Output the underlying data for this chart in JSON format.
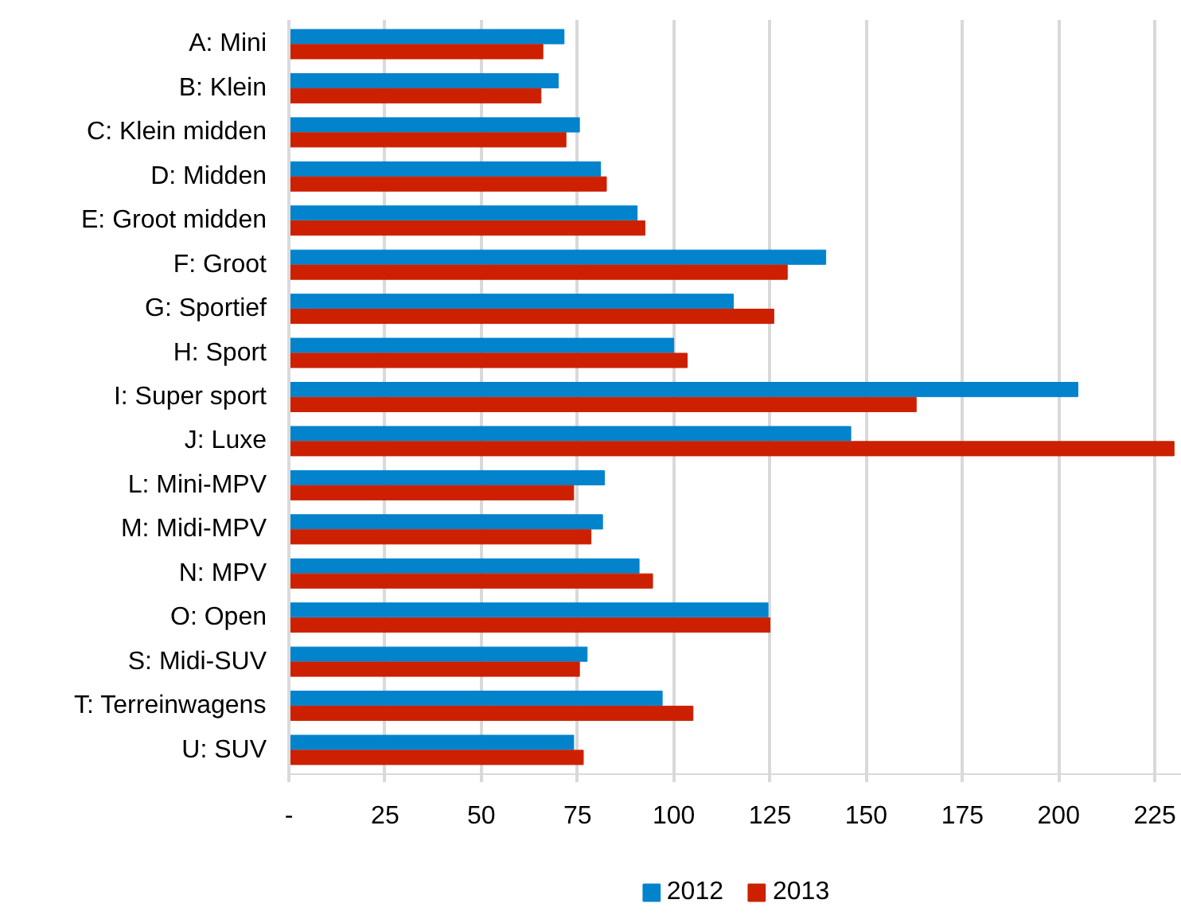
{
  "chart_data": {
    "type": "bar",
    "orientation": "horizontal",
    "categories": [
      "A: Mini",
      "B: Klein",
      "C: Klein midden",
      "D: Midden",
      "E: Groot midden",
      "F: Groot",
      "G: Sportief",
      "H: Sport",
      "I: Super sport",
      "J: Luxe",
      "L: Mini-MPV",
      "M: Midi-MPV",
      "N: MPV",
      "O: Open",
      "S: Midi-SUV",
      "T: Terreinwagens",
      "U: SUV"
    ],
    "series": [
      {
        "name": "2012",
        "color": "#0283cc",
        "values": [
          71.5,
          70,
          75.5,
          81,
          90.5,
          139.5,
          115.5,
          100,
          205,
          146,
          82,
          81.5,
          91,
          124.5,
          77.5,
          97,
          74
        ]
      },
      {
        "name": "2013",
        "color": "#cc2000",
        "values": [
          66,
          65.5,
          72,
          82.5,
          92.5,
          129.5,
          126,
          103.5,
          163,
          230,
          74,
          78.5,
          94.5,
          125,
          75.5,
          105,
          76.5
        ]
      }
    ],
    "xlim": [
      0,
      232
    ],
    "xticks": [
      {
        "value": 0,
        "label": "-"
      },
      25,
      50,
      75,
      100,
      125,
      150,
      175,
      200,
      225
    ],
    "grid": "x",
    "legend": "bottom"
  }
}
